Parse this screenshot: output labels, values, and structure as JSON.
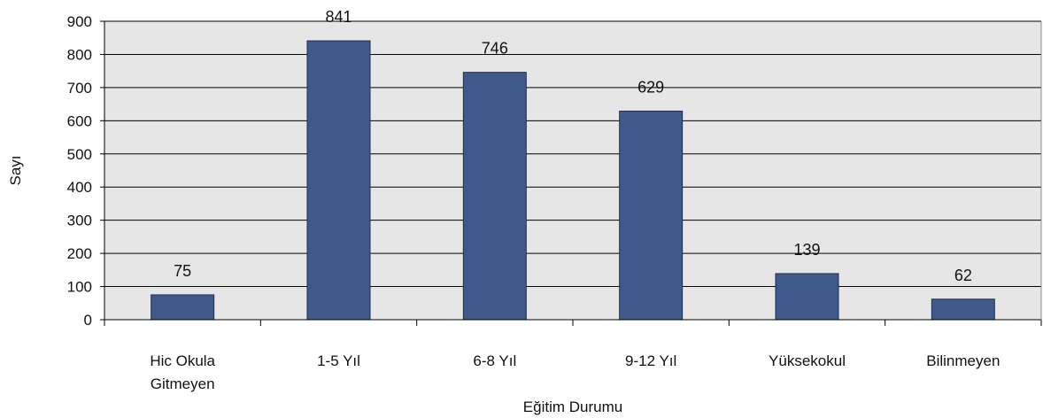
{
  "chart_data": {
    "type": "bar",
    "categories": [
      [
        "Hic Okula",
        "Gitmeyen"
      ],
      [
        "1-5 Yıl"
      ],
      [
        "6-8 Yıl"
      ],
      [
        "9-12 Yıl"
      ],
      [
        "Yüksekokul"
      ],
      [
        "Bilinmeyen"
      ]
    ],
    "values": [
      75,
      841,
      746,
      629,
      139,
      62
    ],
    "data_labels": [
      "75",
      "841",
      "746",
      "629",
      "139",
      "62"
    ],
    "xlabel": "Eğitim Durumu",
    "ylabel": "Sayı",
    "ylim": [
      0,
      900
    ],
    "yticks": [
      0,
      100,
      200,
      300,
      400,
      500,
      600,
      700,
      800,
      900
    ],
    "grid": true,
    "legend": "none",
    "colors": {
      "bar": "#3f5a8a",
      "bar_stroke": "#1f2f4f",
      "plot_background": "#e6e6e6",
      "grid": "#000000"
    }
  }
}
